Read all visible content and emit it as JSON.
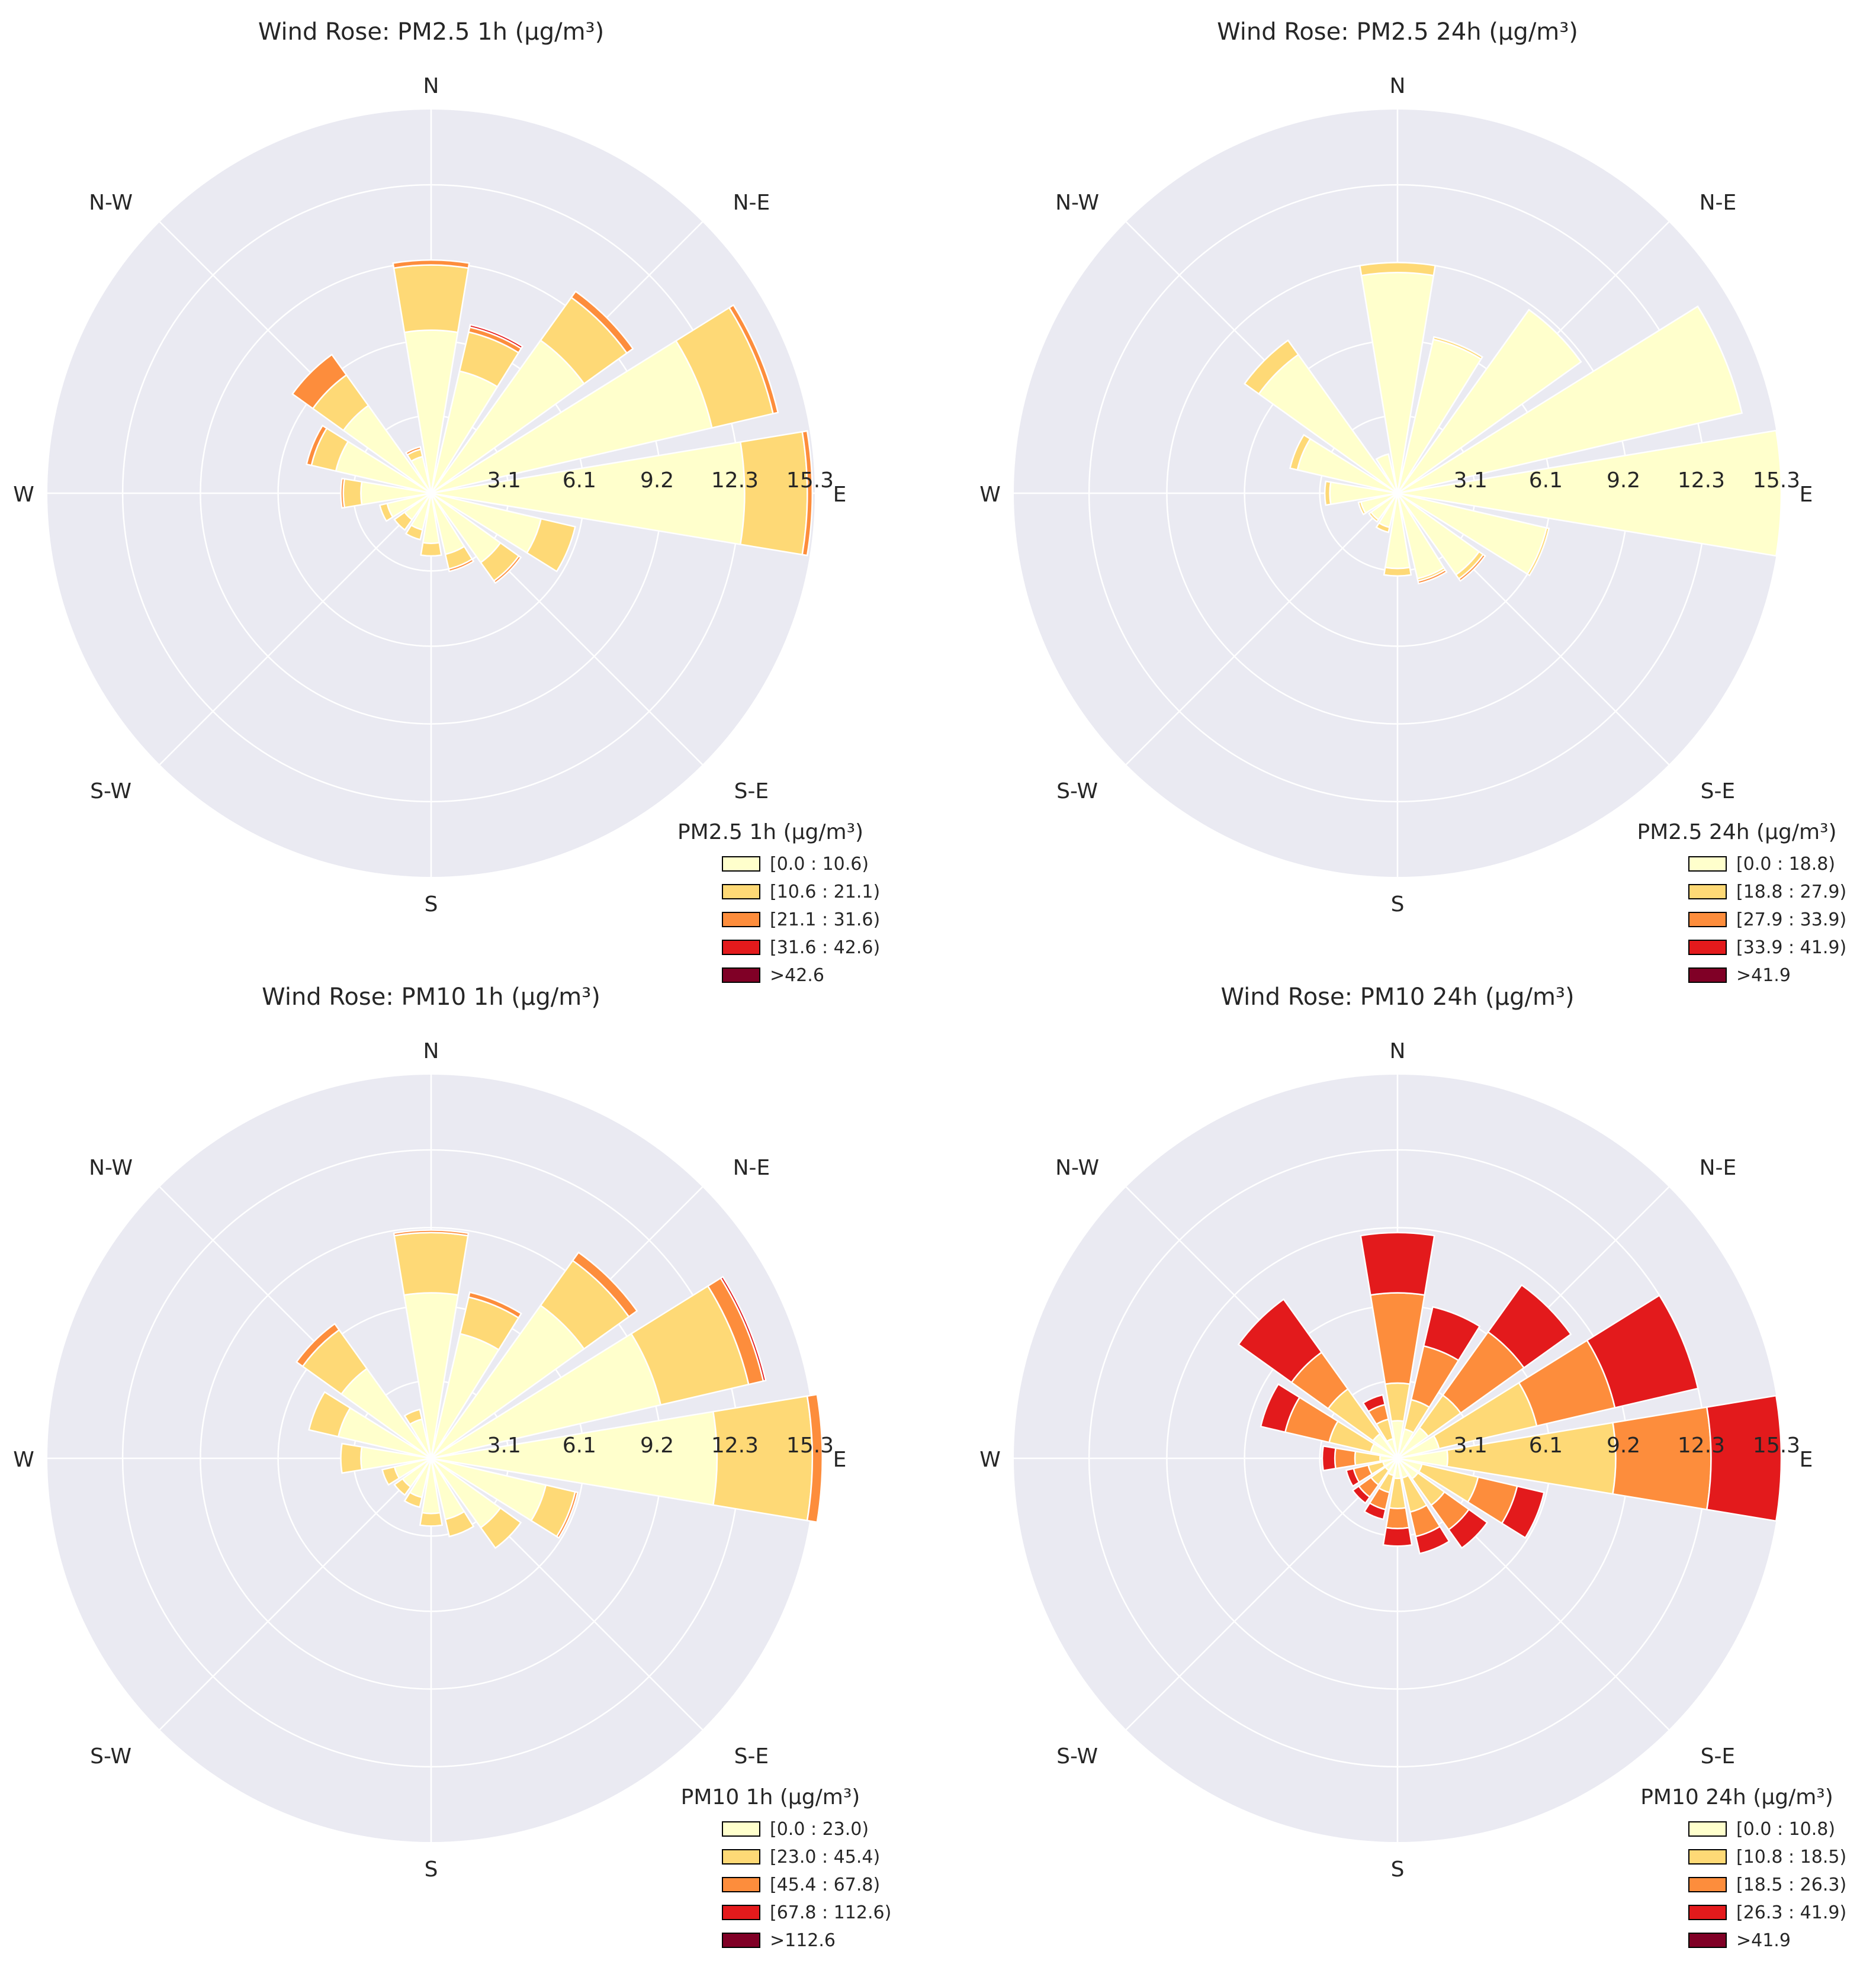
{
  "chart_data": [
    {
      "type": "windrose",
      "title": "Wind Rose: PM2.5 1h (µg/m³)",
      "legend_title": "PM2.5 1h (µg/m³)",
      "bins": [
        "[0.0 : 10.6)",
        "[10.6 : 21.1)",
        "[21.1 : 31.6)",
        "[31.6 : 42.6)",
        ">42.6"
      ],
      "radial_ticks": [
        "3.1",
        "6.1",
        "9.2",
        "12.3",
        "15.3"
      ],
      "rmax": 15.3,
      "directions": [
        "N",
        "N-E",
        "E",
        "S-E",
        "S",
        "S-W",
        "W",
        "N-W"
      ],
      "sector_angles": [
        0,
        22.5,
        45,
        67.5,
        90,
        112.5,
        135,
        157.5,
        180,
        202.5,
        225,
        247.5,
        270,
        292.5,
        315,
        337.5
      ],
      "sectors": [
        [
          6.5,
          2.6,
          0.2,
          0,
          0
        ],
        [
          5.0,
          1.6,
          0.2,
          0.1,
          0
        ],
        [
          7.5,
          2.1,
          0.3,
          0,
          0
        ],
        [
          11.5,
          2.5,
          0.2,
          0,
          0
        ],
        [
          12.5,
          2.5,
          0.2,
          0,
          0
        ],
        [
          4.5,
          1.4,
          0,
          0,
          0
        ],
        [
          3.4,
          0.9,
          0.1,
          0,
          0
        ],
        [
          2.5,
          0.6,
          0.1,
          0,
          0
        ],
        [
          2.0,
          0.5,
          0,
          0,
          0
        ],
        [
          1.5,
          0.4,
          0,
          0,
          0
        ],
        [
          1.3,
          0.5,
          0,
          0,
          0
        ],
        [
          1.8,
          0.3,
          0,
          0,
          0
        ],
        [
          2.8,
          0.7,
          0.1,
          0,
          0
        ],
        [
          3.9,
          1.0,
          0.2,
          0,
          0
        ],
        [
          4.3,
          1.5,
          1.0,
          0,
          0
        ],
        [
          1.5,
          0.3,
          0.1,
          0,
          0
        ]
      ]
    },
    {
      "type": "windrose",
      "title": "Wind Rose: PM2.5 24h (µg/m³)",
      "legend_title": "PM2.5 24h (µg/m³)",
      "bins": [
        "[0.0 : 18.8)",
        "[18.8 : 27.9)",
        "[27.9 : 33.9)",
        "[33.9 : 41.9)",
        ">41.9"
      ],
      "radial_ticks": [
        "3.1",
        "6.1",
        "9.2",
        "12.3",
        "15.3"
      ],
      "rmax": 15.3,
      "directions": [
        "N",
        "N-E",
        "E",
        "S-E",
        "S",
        "S-W",
        "W",
        "N-W"
      ],
      "sector_angles": [
        0,
        22.5,
        45,
        67.5,
        90,
        112.5,
        135,
        157.5,
        180,
        202.5,
        225,
        247.5,
        270,
        292.5,
        315,
        337.5
      ],
      "sectors": [
        [
          8.8,
          0.4,
          0,
          0,
          0
        ],
        [
          6.3,
          0.1,
          0,
          0,
          0
        ],
        [
          9.0,
          0,
          0,
          0,
          0
        ],
        [
          14.1,
          0,
          0,
          0,
          0
        ],
        [
          15.3,
          0,
          0,
          0,
          0
        ],
        [
          6.1,
          0.1,
          0,
          0,
          0
        ],
        [
          4.0,
          0.2,
          0.1,
          0,
          0
        ],
        [
          3.5,
          0.1,
          0.1,
          0,
          0
        ],
        [
          3.0,
          0.3,
          0,
          0,
          0
        ],
        [
          1.4,
          0.2,
          0,
          0,
          0
        ],
        [
          1.3,
          0.1,
          0,
          0,
          0
        ],
        [
          1.5,
          0.1,
          0,
          0,
          0
        ],
        [
          2.7,
          0.2,
          0,
          0,
          0
        ],
        [
          4.1,
          0.3,
          0,
          0,
          0
        ],
        [
          6.8,
          0.7,
          0,
          0,
          0
        ],
        [
          1.6,
          0,
          0,
          0,
          0
        ]
      ]
    },
    {
      "type": "windrose",
      "title": "Wind Rose: PM10 1h (µg/m³)",
      "legend_title": "PM10 1h (µg/m³)",
      "bins": [
        "[0.0 : 23.0)",
        "[23.0 : 45.4)",
        "[45.4 : 67.8)",
        "[67.8 : 112.6)",
        ">112.6"
      ],
      "radial_ticks": [
        "3.1",
        "6.1",
        "9.2",
        "12.3",
        "15.3"
      ],
      "rmax": 15.3,
      "directions": [
        "N",
        "N-E",
        "E",
        "S-E",
        "S",
        "S-W",
        "W",
        "N-W"
      ],
      "sector_angles": [
        0,
        22.5,
        45,
        67.5,
        90,
        112.5,
        135,
        157.5,
        180,
        202.5,
        225,
        247.5,
        270,
        292.5,
        315,
        337.5
      ],
      "sectors": [
        [
          6.6,
          2.4,
          0.1,
          0,
          0
        ],
        [
          5.1,
          1.5,
          0.2,
          0,
          0
        ],
        [
          7.5,
          2.2,
          0.4,
          0,
          0
        ],
        [
          9.4,
          3.6,
          0.6,
          0.1,
          0
        ],
        [
          11.4,
          3.8,
          0.4,
          0,
          0
        ],
        [
          4.7,
          1.2,
          0.1,
          0,
          0
        ],
        [
          3.4,
          1.0,
          0,
          0,
          0
        ],
        [
          2.5,
          0.7,
          0,
          0,
          0
        ],
        [
          2.2,
          0.5,
          0,
          0,
          0
        ],
        [
          1.6,
          0.4,
          0,
          0,
          0
        ],
        [
          1.4,
          0.4,
          0,
          0,
          0
        ],
        [
          1.5,
          0.5,
          0,
          0,
          0
        ],
        [
          2.8,
          0.8,
          0,
          0,
          0
        ],
        [
          3.8,
          1.2,
          0,
          0,
          0
        ],
        [
          4.4,
          1.9,
          0.3,
          0,
          0
        ],
        [
          1.6,
          0.4,
          0,
          0,
          0
        ]
      ]
    },
    {
      "type": "windrose",
      "title": "Wind Rose: PM10 24h (µg/m³)",
      "legend_title": "PM10 24h (µg/m³)",
      "bins": [
        "[0.0 : 10.8)",
        "[10.8 : 18.5)",
        "[18.5 : 26.3)",
        "[26.3 : 41.9)",
        ">41.9"
      ],
      "radial_ticks": [
        "3.1",
        "6.1",
        "9.2",
        "12.3",
        "15.3"
      ],
      "rmax": 15.3,
      "directions": [
        "N",
        "N-E",
        "E",
        "S-E",
        "S",
        "S-W",
        "W",
        "N-W"
      ],
      "sector_angles": [
        0,
        22.5,
        45,
        67.5,
        90,
        112.5,
        135,
        157.5,
        180,
        202.5,
        225,
        247.5,
        270,
        292.5,
        315,
        337.5
      ],
      "sectors": [
        [
          1.5,
          1.5,
          3.6,
          2.4,
          0
        ],
        [
          1.2,
          1.2,
          2.2,
          1.6,
          0
        ],
        [
          1.5,
          1.6,
          3.1,
          2.3,
          0
        ],
        [
          1.7,
          4.0,
          3.2,
          3.4,
          0
        ],
        [
          2.0,
          6.7,
          3.8,
          2.8,
          0
        ],
        [
          1.0,
          2.3,
          1.6,
          1.1,
          0
        ],
        [
          1.0,
          1.3,
          1.2,
          0.9,
          0
        ],
        [
          0.8,
          1.4,
          1.0,
          0.7,
          0
        ],
        [
          0.8,
          1.2,
          0.8,
          0.7,
          0
        ],
        [
          0.7,
          0.7,
          0.7,
          0.4,
          0
        ],
        [
          0.6,
          0.7,
          0.6,
          0.3,
          0
        ],
        [
          0.6,
          0.6,
          0.6,
          0.3,
          0
        ],
        [
          0.7,
          1.0,
          0.8,
          0.5,
          0
        ],
        [
          1.1,
          1.7,
          1.8,
          1.0,
          0
        ],
        [
          1.2,
          2.2,
          1.8,
          2.6,
          0
        ],
        [
          0.8,
          0.8,
          0.6,
          0.4,
          0
        ]
      ]
    }
  ],
  "colors": {
    "bins": [
      "#ffffcc",
      "#fed976",
      "#fd8d3c",
      "#e31a1c",
      "#800026"
    ],
    "polar_background": "#eaeaf2",
    "grid": "#ffffff",
    "text": "#262626"
  }
}
